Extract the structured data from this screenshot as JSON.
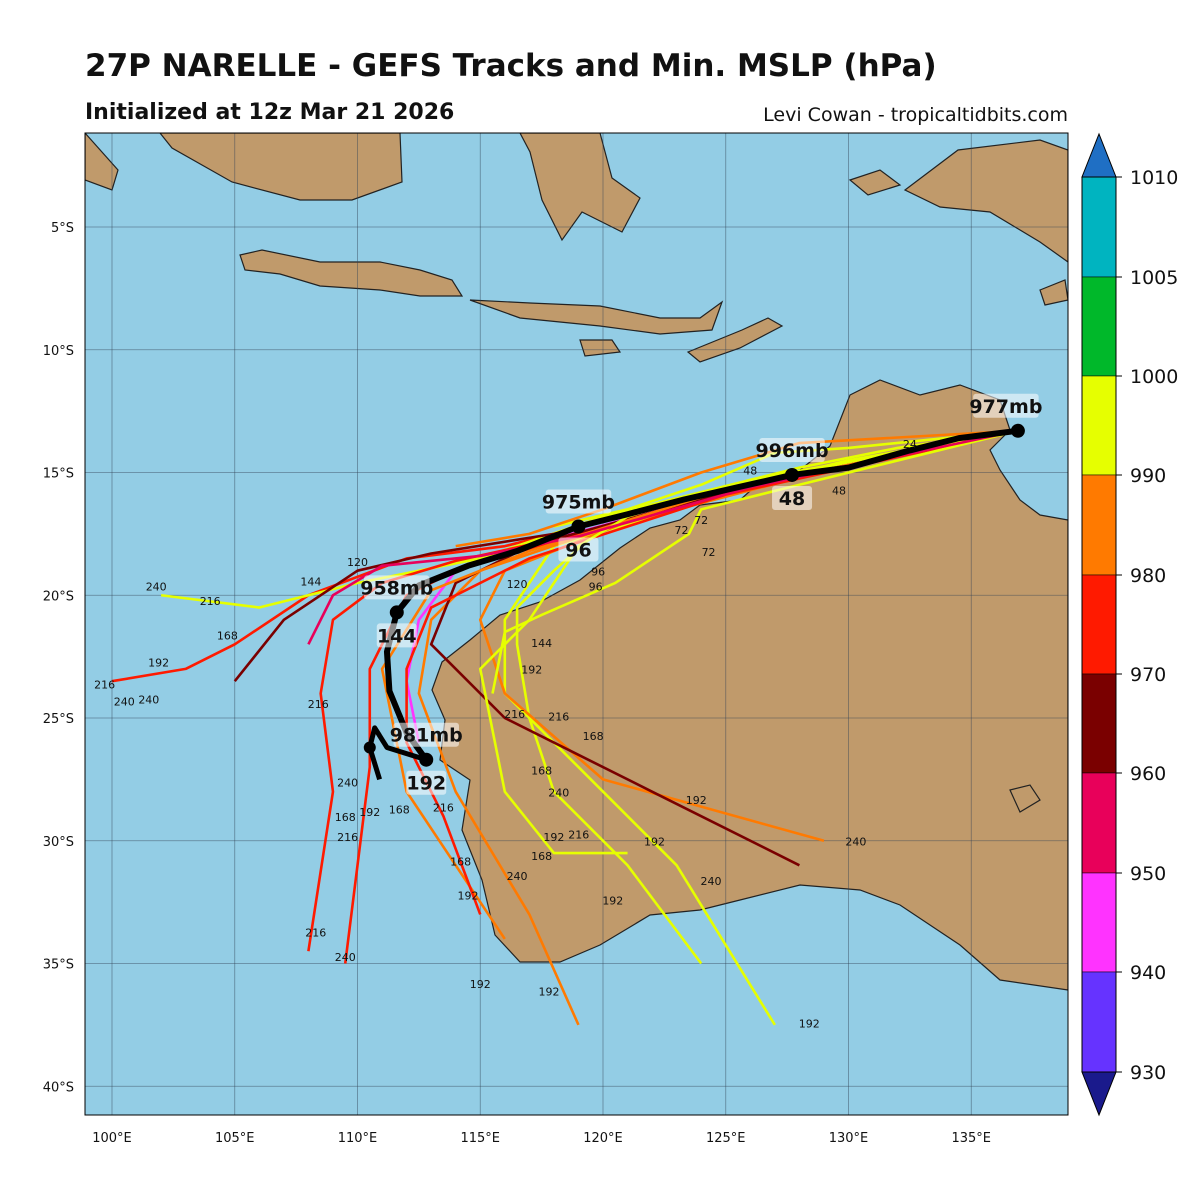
{
  "title": "27P NARELLE - GEFS Tracks and Min. MSLP (hPa)",
  "subtitle": "Initialized at 12z Mar 21 2026",
  "credit": "Levi Cowan - tropicaltidbits.com",
  "map": {
    "lon_range": [
      98.9,
      139.0
    ],
    "lat_range": [
      -41.2,
      -1.2
    ],
    "lon_ticks": [
      "100°E",
      "105°E",
      "110°E",
      "115°E",
      "120°E",
      "125°E",
      "130°E",
      "135°E"
    ],
    "lon_tick_values": [
      100,
      105,
      110,
      115,
      120,
      125,
      130,
      135
    ],
    "lat_ticks": [
      "5°S",
      "10°S",
      "15°S",
      "20°S",
      "25°S",
      "30°S",
      "35°S",
      "40°S"
    ],
    "lat_tick_values": [
      -5,
      -10,
      -15,
      -20,
      -25,
      -30,
      -35,
      -40
    ],
    "ocean_color": "#93cde5",
    "land_color": "#c09a6b",
    "grid": true
  },
  "colorbar": {
    "labels": [
      "1010",
      "1005",
      "1000",
      "990",
      "980",
      "970",
      "960",
      "950",
      "940",
      "930"
    ],
    "colors": [
      "#00b4c0",
      "#00b82a",
      "#e6ff00",
      "#ff7a00",
      "#ff1a00",
      "#7a0000",
      "#e8005a",
      "#ff33ff",
      "#6633ff"
    ],
    "over_color": "#1f6fc4",
    "under_color": "#1a1a8c"
  },
  "mean_track": {
    "points": [
      [
        136.9,
        -13.3
      ],
      [
        134.5,
        -13.6
      ],
      [
        132.5,
        -14.1
      ],
      [
        130,
        -14.8
      ],
      [
        127.7,
        -15.1
      ],
      [
        125.5,
        -15.6
      ],
      [
        123.3,
        -16.1
      ],
      [
        121,
        -16.7
      ],
      [
        119,
        -17.2
      ],
      [
        116.5,
        -18.2
      ],
      [
        114.5,
        -18.8
      ],
      [
        112.5,
        -19.6
      ],
      [
        111.6,
        -20.7
      ],
      [
        111.2,
        -22.3
      ],
      [
        111.3,
        -23.9
      ],
      [
        112,
        -25.6
      ],
      [
        112.8,
        -26.7
      ]
    ],
    "hook": [
      [
        112.8,
        -26.7
      ],
      [
        111.2,
        -26.2
      ],
      [
        110.7,
        -25.4
      ],
      [
        110.5,
        -26.2
      ],
      [
        110.9,
        -27.5
      ]
    ],
    "markers": [
      {
        "lon": 136.9,
        "lat": -13.3,
        "pressure": "977mb",
        "hour": ""
      },
      {
        "lon": 127.7,
        "lat": -15.1,
        "pressure": "996mb",
        "hour": "48"
      },
      {
        "lon": 119.0,
        "lat": -17.2,
        "pressure": "975mb",
        "hour": "96"
      },
      {
        "lon": 111.6,
        "lat": -20.7,
        "pressure": "958mb",
        "hour": "144"
      },
      {
        "lon": 112.8,
        "lat": -26.7,
        "pressure": "981mb",
        "hour": "192"
      }
    ]
  },
  "ensemble_tracks": [
    {
      "color": "#ff1a00",
      "points": [
        [
          136.9,
          -13.3
        ],
        [
          132,
          -14.2
        ],
        [
          128,
          -15.2
        ],
        [
          124,
          -16.1
        ],
        [
          120,
          -17
        ],
        [
          116,
          -18
        ],
        [
          112,
          -18.5
        ],
        [
          108,
          -20
        ],
        [
          105,
          -22
        ],
        [
          103,
          -23
        ],
        [
          100,
          -23.5
        ]
      ]
    },
    {
      "color": "#e6ff00",
      "points": [
        [
          136.9,
          -13.3
        ],
        [
          132,
          -14
        ],
        [
          128,
          -14.8
        ],
        [
          124,
          -15.8
        ],
        [
          120,
          -16.8
        ],
        [
          115,
          -18.5
        ],
        [
          110,
          -19.5
        ],
        [
          106,
          -20.5
        ],
        [
          102,
          -20
        ]
      ]
    },
    {
      "color": "#e6ff00",
      "points": [
        [
          136.9,
          -13.3
        ],
        [
          130,
          -14.5
        ],
        [
          124,
          -16
        ],
        [
          120,
          -17.2
        ],
        [
          118,
          -19
        ],
        [
          116.5,
          -20.5
        ],
        [
          116.5,
          -22
        ],
        [
          117,
          -25
        ],
        [
          118,
          -28
        ],
        [
          121,
          -31
        ],
        [
          124,
          -35
        ]
      ]
    },
    {
      "color": "#e6ff00",
      "points": [
        [
          136.9,
          -13.3
        ],
        [
          128,
          -15
        ],
        [
          122,
          -16.8
        ],
        [
          118,
          -18
        ],
        [
          116,
          -21
        ],
        [
          116,
          -24
        ],
        [
          119,
          -27
        ],
        [
          123,
          -31
        ],
        [
          127,
          -37.5
        ]
      ]
    },
    {
      "color": "#ff7a00",
      "points": [
        [
          136.9,
          -13.3
        ],
        [
          128,
          -15.1
        ],
        [
          121,
          -17
        ],
        [
          116,
          -19
        ],
        [
          115,
          -21
        ],
        [
          116,
          -24
        ],
        [
          120,
          -27.5
        ],
        [
          129,
          -30
        ]
      ]
    },
    {
      "color": "#ff7a00",
      "points": [
        [
          136.9,
          -13.3
        ],
        [
          128,
          -15.2
        ],
        [
          120,
          -17.3
        ],
        [
          115,
          -19
        ],
        [
          113,
          -21
        ],
        [
          112.5,
          -24
        ],
        [
          114,
          -28
        ],
        [
          117,
          -33
        ],
        [
          119,
          -37.5
        ]
      ]
    },
    {
      "color": "#ff1a00",
      "points": [
        [
          136.9,
          -13.3
        ],
        [
          127,
          -15.3
        ],
        [
          119,
          -17.5
        ],
        [
          114,
          -18.6
        ],
        [
          111,
          -19.5
        ],
        [
          109,
          -21
        ],
        [
          108.5,
          -24
        ],
        [
          109,
          -28
        ],
        [
          108,
          -34.5
        ]
      ]
    },
    {
      "color": "#7a0000",
      "points": [
        [
          136.9,
          -13.3
        ],
        [
          126,
          -15.5
        ],
        [
          118,
          -17.5
        ],
        [
          113,
          -18.3
        ],
        [
          110,
          -19
        ],
        [
          107,
          -21
        ],
        [
          105,
          -23.5
        ]
      ]
    },
    {
      "color": "#ff1a00",
      "points": [
        [
          136.9,
          -13.3
        ],
        [
          126,
          -15.6
        ],
        [
          118,
          -17.8
        ],
        [
          114,
          -19
        ],
        [
          112,
          -20
        ],
        [
          110.5,
          -23
        ],
        [
          110.5,
          -27
        ],
        [
          110,
          -31
        ],
        [
          109.5,
          -35
        ]
      ]
    },
    {
      "color": "#ff33ff",
      "points": [
        [
          136.9,
          -13.3
        ],
        [
          126,
          -15.5
        ],
        [
          118,
          -17.7
        ],
        [
          115,
          -18.6
        ],
        [
          114,
          -19
        ],
        [
          112.5,
          -21
        ],
        [
          112,
          -23.5
        ],
        [
          112.5,
          -26
        ]
      ]
    },
    {
      "color": "#7a0000",
      "points": [
        [
          136.9,
          -13.3
        ],
        [
          125,
          -15.8
        ],
        [
          117,
          -18
        ],
        [
          114,
          -19.5
        ],
        [
          113,
          -22
        ],
        [
          116,
          -25
        ],
        [
          122,
          -28
        ],
        [
          128,
          -31
        ]
      ]
    },
    {
      "color": "#ff7a00",
      "points": [
        [
          136.9,
          -13.3
        ],
        [
          125,
          -15.7
        ],
        [
          117,
          -18.2
        ],
        [
          113,
          -19.8
        ],
        [
          111,
          -23
        ],
        [
          112,
          -28
        ],
        [
          114,
          -31
        ],
        [
          116,
          -34
        ]
      ]
    },
    {
      "color": "#ff1a00",
      "points": [
        [
          136.9,
          -13.3
        ],
        [
          125,
          -15.9
        ],
        [
          117,
          -18.5
        ],
        [
          113,
          -20.5
        ],
        [
          112,
          -23
        ],
        [
          112,
          -26
        ],
        [
          113.5,
          -29
        ],
        [
          115,
          -33
        ]
      ]
    },
    {
      "color": "#e6ff00",
      "points": [
        [
          136.9,
          -13.3
        ],
        [
          126,
          -15.3
        ],
        [
          121,
          -16.8
        ],
        [
          119,
          -18
        ],
        [
          117,
          -21
        ],
        [
          115,
          -23
        ],
        [
          116,
          -28
        ],
        [
          118,
          -30.5
        ],
        [
          121,
          -30.5
        ]
      ]
    },
    {
      "color": "#e6ff00",
      "points": [
        [
          136.9,
          -13.3
        ],
        [
          130,
          -14
        ],
        [
          127,
          -14.2
        ],
        [
          124,
          -15.5
        ],
        [
          121,
          -16.5
        ],
        [
          118,
          -17.2
        ]
      ]
    },
    {
      "color": "#ff7a00",
      "points": [
        [
          136.9,
          -13.3
        ],
        [
          128,
          -13.8
        ],
        [
          124,
          -15
        ],
        [
          120,
          -16.5
        ],
        [
          117,
          -17.5
        ],
        [
          114,
          -18
        ]
      ]
    },
    {
      "color": "#e6ff00",
      "points": [
        [
          136.9,
          -13.3
        ],
        [
          128,
          -15.5
        ],
        [
          124,
          -16.5
        ],
        [
          123.5,
          -17.5
        ],
        [
          120.5,
          -19.5
        ],
        [
          117.5,
          -20.8
        ],
        [
          116,
          -21.5
        ],
        [
          115.5,
          -24
        ]
      ]
    },
    {
      "color": "#e8005a",
      "points": [
        [
          136.9,
          -13.3
        ],
        [
          126,
          -15.6
        ],
        [
          119,
          -17.6
        ],
        [
          115,
          -18.4
        ],
        [
          111,
          -18.8
        ],
        [
          109,
          -20
        ],
        [
          108,
          -22
        ]
      ]
    }
  ],
  "hour_labels": [
    {
      "text": "24",
      "lon": 132.5,
      "lat": -14.0
    },
    {
      "text": "48",
      "lon": 126,
      "lat": -14.6
    },
    {
      "text": "48",
      "lon": 128.8,
      "lat": -15.9
    },
    {
      "text": "72",
      "lon": 124,
      "lat": -17.1
    },
    {
      "text": "72",
      "lon": 123.2,
      "lat": -17.5
    },
    {
      "text": "72",
      "lon": 124.3,
      "lat": -18.4
    },
    {
      "text": "96",
      "lon": 119.8,
      "lat": -18.7
    },
    {
      "text": "96",
      "lon": 119.7,
      "lat": -19.8
    },
    {
      "text": "120",
      "lon": 110,
      "lat": -19.3
    },
    {
      "text": "120",
      "lon": 116.5,
      "lat": -19.7
    },
    {
      "text": "144",
      "lon": 108.1,
      "lat": -19.6
    },
    {
      "text": "144",
      "lon": 117.5,
      "lat": -22.1
    },
    {
      "text": "240",
      "lon": 101.8,
      "lat": -19.8
    },
    {
      "text": "216",
      "lon": 104,
      "lat": -20.4
    },
    {
      "text": "168",
      "lon": 104.7,
      "lat": -21.8
    },
    {
      "text": "192",
      "lon": 101.9,
      "lat": -22.9
    },
    {
      "text": "216",
      "lon": 99.7,
      "lat": -23.8
    },
    {
      "text": "240",
      "lon": 100.5,
      "lat": -24.5
    },
    {
      "text": "240",
      "lon": 101.5,
      "lat": -24.4
    },
    {
      "text": "216",
      "lon": 108.4,
      "lat": -24.6
    },
    {
      "text": "240",
      "lon": 109.6,
      "lat": -27.8
    },
    {
      "text": "168",
      "lon": 109.5,
      "lat": -29.2
    },
    {
      "text": "216",
      "lon": 109.6,
      "lat": -30
    },
    {
      "text": "216",
      "lon": 108.3,
      "lat": -33.9
    },
    {
      "text": "240",
      "lon": 109.5,
      "lat": -34.9
    },
    {
      "text": "192",
      "lon": 110.5,
      "lat": -29
    },
    {
      "text": "168",
      "lon": 111.7,
      "lat": -28.4
    },
    {
      "text": "216",
      "lon": 113.5,
      "lat": -28.8
    },
    {
      "text": "168",
      "lon": 114.2,
      "lat": -31
    },
    {
      "text": "192",
      "lon": 114.5,
      "lat": -32.4
    },
    {
      "text": "240",
      "lon": 116.5,
      "lat": -31.6
    },
    {
      "text": "192",
      "lon": 115,
      "lat": -36
    },
    {
      "text": "192",
      "lon": 117.8,
      "lat": -36.3
    },
    {
      "text": "192",
      "lon": 120.4,
      "lat": -32.6
    },
    {
      "text": "192",
      "lon": 122.1,
      "lat": -30.2
    },
    {
      "text": "240",
      "lon": 124.4,
      "lat": -31.8
    },
    {
      "text": "192",
      "lon": 128.4,
      "lat": -37.6
    },
    {
      "text": "240",
      "lon": 130.3,
      "lat": -30.2
    },
    {
      "text": "192",
      "lon": 123.8,
      "lat": -28.5
    },
    {
      "text": "168",
      "lon": 119.6,
      "lat": -25.9
    },
    {
      "text": "216",
      "lon": 118.2,
      "lat": -25.1
    },
    {
      "text": "216",
      "lon": 116.4,
      "lat": -25
    },
    {
      "text": "168",
      "lon": 117.5,
      "lat": -27.3
    },
    {
      "text": "240",
      "lon": 118.2,
      "lat": -27.7
    },
    {
      "text": "192",
      "lon": 118,
      "lat": -30
    },
    {
      "text": "216",
      "lon": 118.2,
      "lat": -29.9
    },
    {
      "text": "168",
      "lon": 117.5,
      "lat": -30.3
    },
    {
      "text": "192",
      "lon": 117.1,
      "lat": -22.7
    }
  ]
}
